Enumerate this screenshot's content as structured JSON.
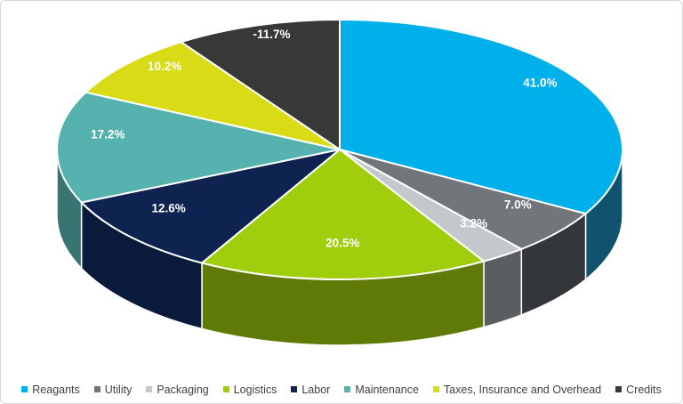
{
  "chart": {
    "background_color": "#FFFFFF",
    "frame_border_color": "#D8D8D8"
  },
  "chart_data": {
    "type": "pie",
    "style": "3d-pie",
    "title": "",
    "categories": [
      "Reagants",
      "Utility",
      "Packaging",
      "Logistics",
      "Labor",
      "Maintenance",
      "Taxes, Insurance and Overhead",
      "Credits"
    ],
    "values": [
      41.0,
      7.0,
      3.2,
      20.5,
      12.6,
      17.2,
      10.2,
      -11.7
    ],
    "data_labels": [
      "41.0%",
      "7.0%",
      "3.2%",
      "20.5%",
      "12.6%",
      "17.2%",
      "10.2%",
      "-11.7%"
    ],
    "colors": [
      "#00B0EA",
      "#71767B",
      "#C3C8CC",
      "#A0CE0C",
      "#0E2350",
      "#55B2AF",
      "#D9DB16",
      "#373937"
    ],
    "side_colors": [
      "#11536E",
      "#33373B",
      "#5A5E62",
      "#5F7A07",
      "#0A1A3B",
      "#377472",
      "#8B8E0E",
      "#232424"
    ],
    "data_label_color": "#FFFFFF",
    "start_angle_deg": 0,
    "direction": "clockwise",
    "legend_position": "bottom",
    "legend_text_color": "#404040",
    "slice_separator_color": "#FFFFFF",
    "note": "negative value plotted by absolute magnitude"
  }
}
